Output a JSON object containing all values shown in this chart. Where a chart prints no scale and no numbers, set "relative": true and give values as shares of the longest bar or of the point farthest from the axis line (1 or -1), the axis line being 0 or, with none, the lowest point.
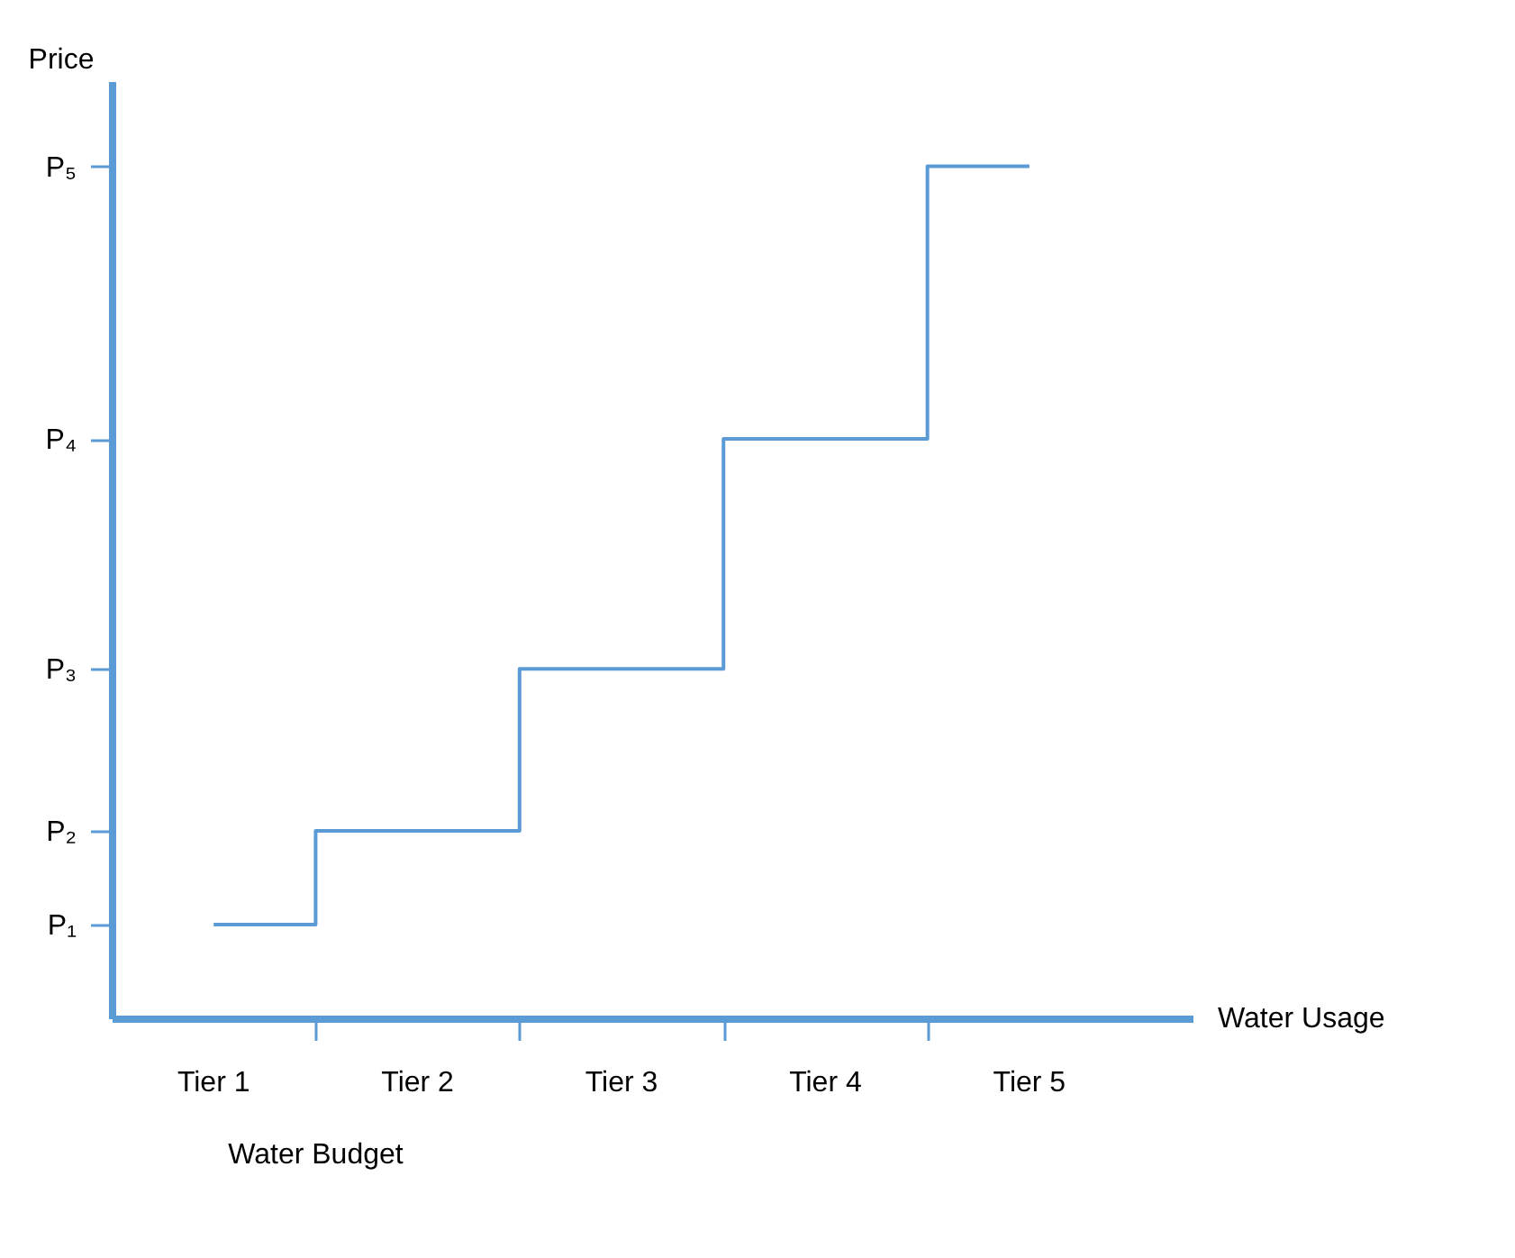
{
  "chart_data": {
    "type": "step",
    "relative": true,
    "xlabel": "Water Usage",
    "ylabel": "Price",
    "categories": [
      "Tier 1",
      "Tier 2",
      "Tier 3",
      "Tier 4",
      "Tier 5"
    ],
    "series": [
      {
        "color": "#5b9bd5",
        "values": [
          0.11,
          0.22,
          0.41,
          0.68,
          1
        ]
      }
    ],
    "annotations": [
      "P₁",
      "P₂",
      "P₃",
      "P₄",
      "P₅",
      "Water Budget"
    ],
    "grid": false,
    "legend": false
  }
}
